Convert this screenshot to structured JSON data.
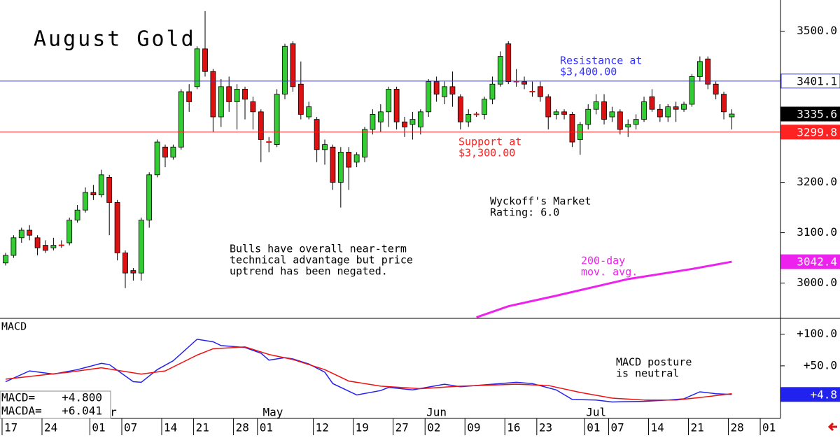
{
  "chart_data": [
    {
      "type": "candlestick",
      "title": "August Gold",
      "open": [
        3040,
        3055,
        3090,
        3105,
        3090,
        3075,
        3070,
        3075,
        3080,
        3125,
        3145,
        3180,
        3175,
        3210,
        3160,
        3060,
        3025,
        3020,
        3125,
        3215,
        3270,
        3250,
        3270,
        3380,
        3390,
        3465,
        3420,
        3330,
        3390,
        3360,
        3385,
        3360,
        3340,
        3280,
        3275,
        3375,
        3475,
        3395,
        3330,
        3325,
        3265,
        3270,
        3200,
        3260,
        3240,
        3250,
        3305,
        3320,
        3340,
        3385,
        3320,
        3315,
        3310,
        3340,
        3400,
        3370,
        3390,
        3370,
        3320,
        3335,
        3335,
        3365,
        3395,
        3475,
        3400,
        3400,
        3380,
        3390,
        3370,
        3335,
        3340,
        3335,
        3285,
        3315,
        3345,
        3360,
        3330,
        3340,
        3310,
        3315,
        3325,
        3370,
        3345,
        3330,
        3350,
        3345,
        3355,
        3410,
        3445,
        3395,
        3375,
        3330
      ],
      "high": [
        3060,
        3095,
        3110,
        3115,
        3095,
        3085,
        3090,
        3085,
        3130,
        3155,
        3190,
        3195,
        3225,
        3215,
        3165,
        3065,
        3030,
        3130,
        3220,
        3285,
        3275,
        3275,
        3385,
        3395,
        3470,
        3540,
        3425,
        3405,
        3410,
        3395,
        3390,
        3370,
        3345,
        3290,
        3385,
        3475,
        3480,
        3440,
        3360,
        3330,
        3285,
        3275,
        3270,
        3270,
        3260,
        3310,
        3345,
        3355,
        3390,
        3390,
        3330,
        3340,
        3345,
        3405,
        3410,
        3400,
        3420,
        3375,
        3345,
        3340,
        3370,
        3410,
        3460,
        3480,
        3425,
        3410,
        3400,
        3400,
        3375,
        3345,
        3345,
        3340,
        3320,
        3355,
        3375,
        3375,
        3350,
        3345,
        3325,
        3335,
        3370,
        3385,
        3355,
        3355,
        3360,
        3360,
        3415,
        3450,
        3450,
        3400,
        3380,
        3345
      ],
      "low": [
        3035,
        3050,
        3080,
        3085,
        3055,
        3060,
        3065,
        3070,
        3075,
        3120,
        3140,
        3165,
        3170,
        3095,
        3045,
        2990,
        3005,
        3005,
        3110,
        3210,
        3230,
        3245,
        3265,
        3340,
        3385,
        3410,
        3300,
        3310,
        3340,
        3305,
        3325,
        3305,
        3240,
        3260,
        3270,
        3365,
        3380,
        3325,
        3325,
        3240,
        3235,
        3185,
        3150,
        3185,
        3230,
        3240,
        3295,
        3300,
        3310,
        3305,
        3290,
        3285,
        3295,
        3330,
        3360,
        3355,
        3350,
        3305,
        3310,
        3330,
        3325,
        3355,
        3390,
        3395,
        3390,
        3385,
        3370,
        3360,
        3305,
        3325,
        3325,
        3270,
        3255,
        3305,
        3335,
        3315,
        3320,
        3295,
        3290,
        3305,
        3320,
        3340,
        3320,
        3320,
        3320,
        3340,
        3350,
        3400,
        3385,
        3365,
        3325,
        3305
      ],
      "close": [
        3055,
        3090,
        3105,
        3095,
        3070,
        3065,
        3075,
        3075,
        3125,
        3145,
        3180,
        3175,
        3215,
        3160,
        3060,
        3020,
        3020,
        3125,
        3215,
        3280,
        3250,
        3270,
        3380,
        3360,
        3465,
        3420,
        3330,
        3390,
        3360,
        3385,
        3365,
        3340,
        3285,
        3280,
        3375,
        3470,
        3390,
        3335,
        3350,
        3265,
        3275,
        3200,
        3260,
        3230,
        3255,
        3305,
        3335,
        3340,
        3385,
        3320,
        3310,
        3325,
        3340,
        3400,
        3375,
        3390,
        3375,
        3320,
        3335,
        3335,
        3365,
        3395,
        3450,
        3400,
        3400,
        3395,
        3380,
        3370,
        3330,
        3340,
        3335,
        3280,
        3315,
        3345,
        3360,
        3325,
        3340,
        3305,
        3315,
        3325,
        3360,
        3345,
        3330,
        3350,
        3345,
        3355,
        3410,
        3440,
        3395,
        3375,
        3340,
        3335.6
      ],
      "up_color": "#33cc33",
      "down_color": "#dd1111",
      "moving_average": {
        "x": [
          59,
          63,
          69,
          78,
          86,
          91
        ],
        "values": [
          2932,
          2954,
          2975,
          3008,
          3028,
          3042.4
        ],
        "color": "#ee22ee"
      },
      "price_lines": [
        {
          "value": 3401.1,
          "color": "#3333ff"
        },
        {
          "value": 3299.8,
          "color": "#ff2222"
        }
      ],
      "xlim": [
        -0.7,
        97.1
      ],
      "ylim": [
        2930,
        3562
      ],
      "yticks": [
        {
          "value": 3000,
          "label": "3000.0"
        },
        {
          "value": 3100,
          "label": "3100.0"
        },
        {
          "value": 3200,
          "label": "3200.0"
        },
        {
          "value": 3300,
          "label": "3300.0"
        },
        {
          "value": 3400,
          "label": "3400.0"
        },
        {
          "value": 3500,
          "label": "3500.0"
        }
      ],
      "annotations": [
        {
          "lines": [
            "Resistance at",
            "$3,400.00"
          ],
          "color": "#3333ff"
        },
        {
          "lines": [
            "Support at",
            "$3,300.00"
          ],
          "color": "#ff2222"
        },
        {
          "lines": [
            "Wyckoff's Market",
            "Rating: 6.0"
          ],
          "color": "#000000"
        },
        {
          "lines": [
            "Bulls have overall near-term",
            "technical advantage but price",
            "uptrend has been negated."
          ],
          "color": "#000000"
        },
        {
          "lines": [
            "200-day",
            "mov. avg."
          ],
          "color": "#ee22ee"
        }
      ]
    },
    {
      "type": "line",
      "title": "MACD",
      "series": [
        {
          "name": "MACD=",
          "readout": "+4.800",
          "color": "#2222ee",
          "x": [
            0,
            3,
            6,
            9,
            12,
            13,
            16,
            17,
            19,
            21,
            24,
            26,
            27,
            30,
            32,
            33,
            35,
            36,
            38,
            40,
            41,
            44,
            47,
            48,
            51,
            55,
            57,
            61,
            64,
            66,
            69,
            71,
            74,
            76,
            80,
            83,
            85,
            87,
            89,
            91
          ],
          "values": [
            25,
            42,
            37,
            44,
            54,
            52,
            25,
            24,
            44,
            58,
            92,
            88,
            82,
            79,
            70,
            59,
            63,
            61,
            53,
            40,
            22,
            4,
            11,
            16,
            12,
            21,
            17,
            21,
            24,
            22,
            12,
            -3,
            -4,
            -7,
            -6,
            -4,
            -2,
            9,
            6,
            4.8
          ],
          "last_label": "+4.8"
        },
        {
          "name": "MACDA=",
          "readout": "+6.041",
          "color": "#ee1111",
          "x": [
            0,
            5,
            8,
            12,
            17,
            20,
            24,
            26,
            30,
            33,
            36,
            40,
            43,
            47,
            52,
            57,
            64,
            68,
            72,
            76,
            80,
            84,
            87,
            91
          ],
          "values": [
            29,
            36,
            40,
            47,
            37,
            42,
            67,
            77,
            80,
            68,
            60,
            44,
            26,
            18,
            14,
            18,
            21,
            19,
            8,
            -1,
            -4,
            -4,
            0,
            6.041
          ]
        }
      ],
      "xlim": [
        -0.7,
        97.1
      ],
      "ylim": [
        -33,
        125
      ],
      "yticks": [
        {
          "value": 50,
          "label": "+50.0"
        },
        {
          "value": 100,
          "label": "+100.0"
        }
      ],
      "xticks": [
        {
          "value": 0,
          "label": "17"
        },
        {
          "value": 5,
          "label": "24"
        },
        {
          "value": 11,
          "label": "01"
        },
        {
          "value": 15,
          "label": "07"
        },
        {
          "value": 20,
          "label": "14"
        },
        {
          "value": 24,
          "label": "21"
        },
        {
          "value": 29,
          "label": "28"
        },
        {
          "value": 32,
          "label": "01"
        },
        {
          "value": 39,
          "label": "12"
        },
        {
          "value": 44,
          "label": "19"
        },
        {
          "value": 49,
          "label": "27"
        },
        {
          "value": 53,
          "label": "02"
        },
        {
          "value": 58,
          "label": "09"
        },
        {
          "value": 63,
          "label": "16"
        },
        {
          "value": 67,
          "label": "23"
        },
        {
          "value": 73,
          "label": "01"
        },
        {
          "value": 76,
          "label": "07"
        },
        {
          "value": 81,
          "label": "14"
        },
        {
          "value": 86,
          "label": "21"
        },
        {
          "value": 91,
          "label": "28"
        },
        {
          "value": 95,
          "label": "01"
        }
      ],
      "months": [
        {
          "value": 13.5,
          "label": "r"
        },
        {
          "value": 33.5,
          "label": "May"
        },
        {
          "value": 54,
          "label": "Jun"
        },
        {
          "value": 74,
          "label": "Jul"
        }
      ],
      "annotations": [
        {
          "lines": [
            "MACD posture",
            "is neutral"
          ],
          "color": "#000000"
        }
      ]
    }
  ]
}
